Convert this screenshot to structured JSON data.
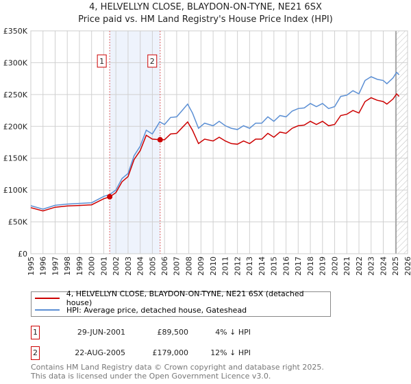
{
  "title": "4, HELVELLYN CLOSE, BLAYDON-ON-TYNE, NE21 6SX",
  "subtitle": "Price paid vs. HM Land Registry's House Price Index (HPI)",
  "chart_data": {
    "type": "line",
    "xlim": [
      1995,
      2026
    ],
    "ylim": [
      0,
      350000
    ],
    "y_ticks": [
      0,
      50000,
      100000,
      150000,
      200000,
      250000,
      300000,
      350000
    ],
    "y_tick_labels": [
      "£0",
      "£50K",
      "£100K",
      "£150K",
      "£200K",
      "£250K",
      "£300K",
      "£350K"
    ],
    "x_ticks": [
      "1995",
      "1996",
      "1997",
      "1998",
      "1999",
      "2000",
      "2001",
      "2002",
      "2003",
      "2004",
      "2005",
      "2006",
      "2007",
      "2008",
      "2009",
      "2010",
      "2011",
      "2012",
      "2013",
      "2014",
      "2015",
      "2016",
      "2017",
      "2018",
      "2019",
      "2020",
      "2021",
      "2022",
      "2023",
      "2024",
      "2025",
      "2026"
    ],
    "grid": true,
    "shaded_range": [
      2001.49,
      2005.64
    ],
    "forecast_hatch_from": 2025.05,
    "series": [
      {
        "name": "4, HELVELLYN CLOSE, BLAYDON-ON-TYNE, NE21 6SX (detached house)",
        "color": "#cc0000",
        "x": [
          1995,
          1996,
          1997,
          1998,
          1999,
          2000,
          2001,
          2001.5,
          2002,
          2002.5,
          2003,
          2003.5,
          2004,
          2004.5,
          2005,
          2005.6,
          2006,
          2006.5,
          2007,
          2007.5,
          2007.9,
          2008.3,
          2008.8,
          2009.3,
          2010,
          2010.5,
          2011,
          2011.5,
          2012,
          2012.5,
          2013,
          2013.5,
          2014,
          2014.5,
          2015,
          2015.5,
          2016,
          2016.5,
          2017,
          2017.5,
          2018,
          2018.5,
          2019,
          2019.5,
          2020,
          2020.5,
          2021,
          2021.5,
          2022,
          2022.5,
          2023,
          2023.5,
          2024,
          2024.3,
          2024.8,
          2025.1,
          2025.3
        ],
        "values": [
          72400,
          67200,
          73000,
          74900,
          75800,
          76800,
          86400,
          89300,
          96000,
          113000,
          121000,
          148000,
          162000,
          186000,
          180000,
          179000,
          179000,
          188000,
          189000,
          199000,
          207000,
          194000,
          173000,
          180000,
          177000,
          183000,
          177000,
          173000,
          172000,
          177000,
          173000,
          180000,
          180000,
          189000,
          183000,
          191000,
          189000,
          197000,
          201000,
          202000,
          208000,
          203000,
          208000,
          201000,
          203000,
          217000,
          219000,
          225000,
          221000,
          239000,
          245000,
          241000,
          239000,
          235000,
          243000,
          251000,
          247000
        ]
      },
      {
        "name": "HPI: Average price, detached house, Gateshead",
        "color": "#5b8fd4",
        "x": [
          1995,
          1996,
          1997,
          1998,
          1999,
          2000,
          2001,
          2001.5,
          2002,
          2002.5,
          2003,
          2003.5,
          2004,
          2004.5,
          2005,
          2005.6,
          2006,
          2006.5,
          2007,
          2007.5,
          2007.9,
          2008.3,
          2008.8,
          2009.3,
          2010,
          2010.5,
          2011,
          2011.5,
          2012,
          2012.5,
          2013,
          2013.5,
          2014,
          2014.5,
          2015,
          2015.5,
          2016,
          2016.5,
          2017,
          2017.5,
          2018,
          2018.5,
          2019,
          2019.5,
          2020,
          2020.5,
          2021,
          2021.5,
          2022,
          2022.5,
          2023,
          2023.5,
          2024,
          2024.3,
          2024.8,
          2025.1,
          2025.3
        ],
        "values": [
          75400,
          70000,
          76000,
          78000,
          79000,
          80000,
          90000,
          93000,
          100000,
          118000,
          126000,
          154000,
          169000,
          194000,
          188000,
          207000,
          203000,
          214000,
          215000,
          226000,
          235000,
          221000,
          197000,
          205000,
          201000,
          208000,
          201000,
          197000,
          195000,
          201000,
          197000,
          205000,
          205000,
          215000,
          208000,
          217000,
          215000,
          224000,
          228000,
          229000,
          236000,
          231000,
          236000,
          228000,
          231000,
          247000,
          249000,
          256000,
          251000,
          272000,
          278000,
          274000,
          272000,
          267000,
          276000,
          285000,
          281000
        ]
      }
    ],
    "sales": [
      {
        "label": "1",
        "x": 2001.49,
        "value": 89500
      },
      {
        "label": "2",
        "x": 2005.64,
        "value": 179000
      }
    ]
  },
  "legend": {
    "red_label": "4, HELVELLYN CLOSE, BLAYDON-ON-TYNE, NE21 6SX (detached house)",
    "blue_label": "HPI: Average price, detached house, Gateshead"
  },
  "transactions": [
    {
      "num": "1",
      "date": "29-JUN-2001",
      "price": "£89,500",
      "hpi": "4% ↓ HPI"
    },
    {
      "num": "2",
      "date": "22-AUG-2005",
      "price": "£179,000",
      "hpi": "12% ↓ HPI"
    }
  ],
  "footer": {
    "line1": "Contains HM Land Registry data © Crown copyright and database right 2025.",
    "line2": "This data is licensed under the Open Government Licence v3.0."
  }
}
